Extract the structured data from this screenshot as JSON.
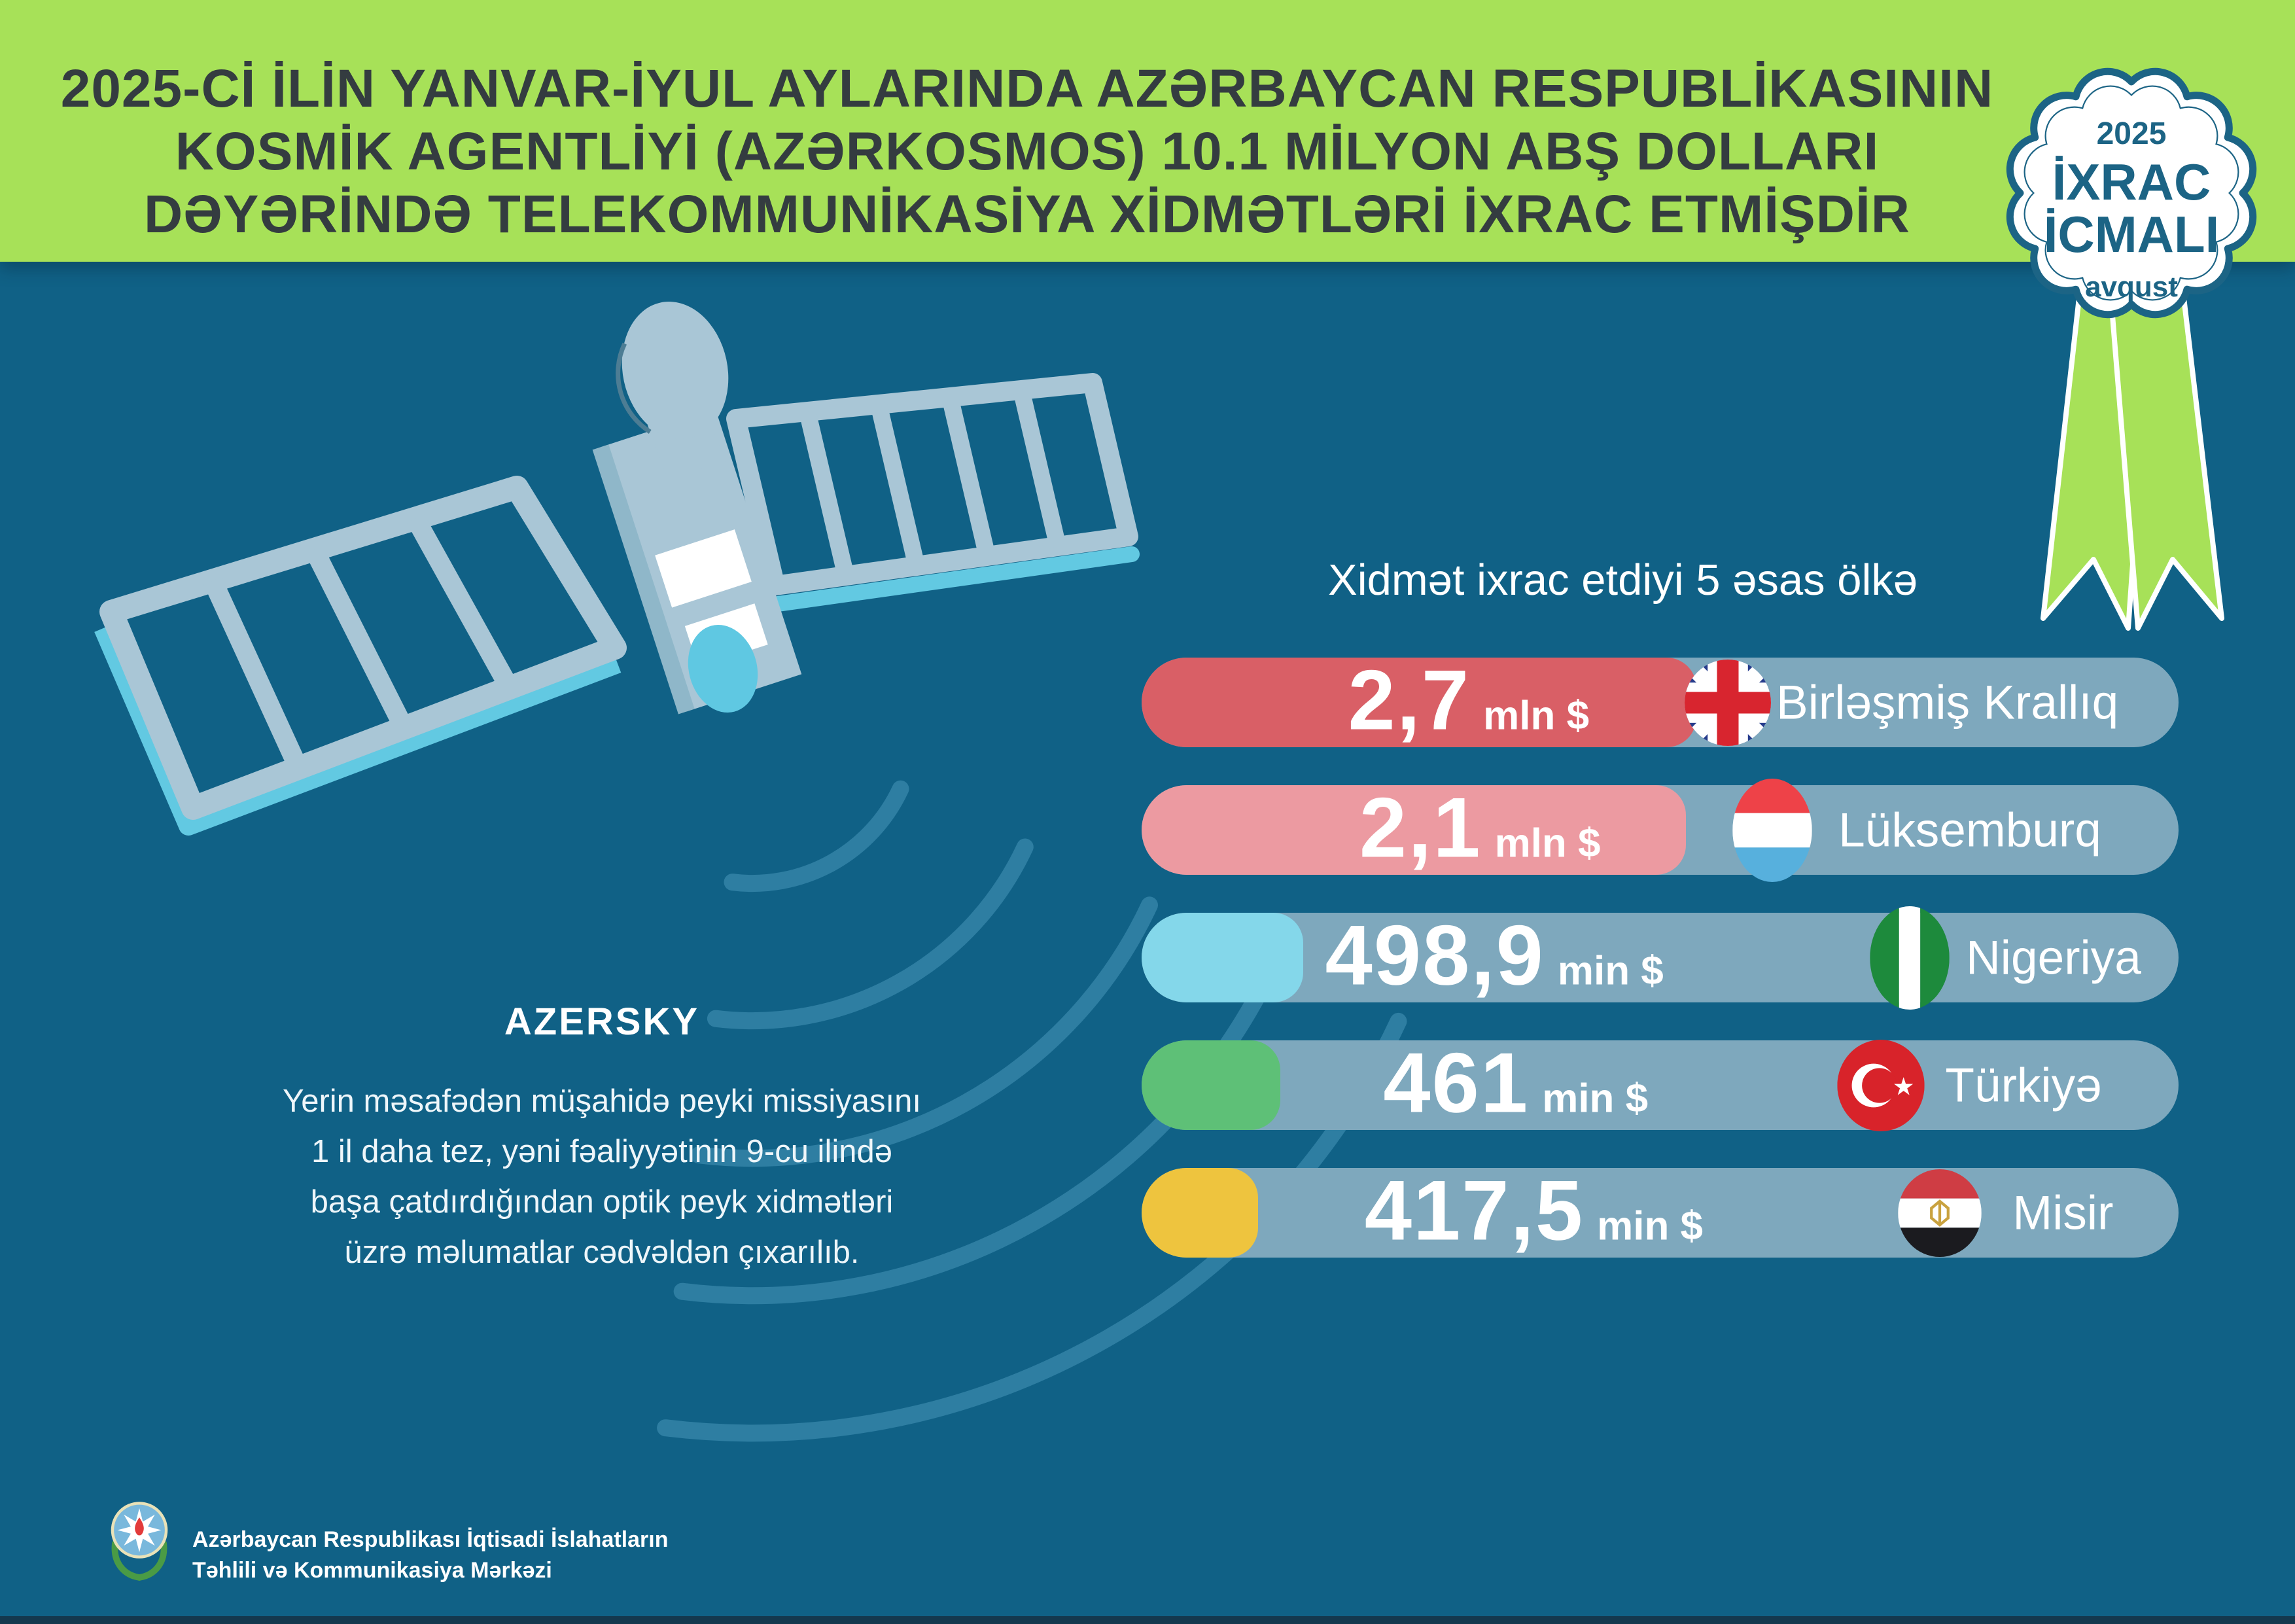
{
  "palette": {
    "background_teal": "#106186",
    "header_green": "#a7e158",
    "title_text": "#343c40",
    "badge_teal": "#1c6485",
    "track": "#7ea8bd",
    "satellite_body": "#a9c6d6",
    "satellite_edge": "#62c9e2",
    "signal_arc": "#2e7ea2"
  },
  "header": {
    "title_lines": [
      "2025-Cİ İLİN YANVAR-İYUL AYLARINDA AZƏRBAYCAN RESPUBLİKASININ",
      "KOSMİK AGENTLİYİ (AZƏRKOSMOS) 10.1 MİLYON ABŞ DOLLARI",
      "DƏYƏRİNDƏ TELEKOMMUNİKASİYA XİDMƏTLƏRİ İXRAC ETMİŞDİR"
    ],
    "badge": {
      "year": "2025",
      "word1": "İXRAC",
      "word2": "İCMALI",
      "month": "avqust"
    }
  },
  "azersky": {
    "title": "AZERSKY",
    "note_lines": [
      "Yerin məsafədən müşahidə peyki missiyasını",
      "1 il daha tez, yəni fəaliyyətinin 9-cu ilində",
      "başa çatdırdığından optik peyk xidmətləri",
      "üzrə məlumatlar cədvəldən çıxarılıb."
    ]
  },
  "chart": {
    "title": "Xidmət ixrac etdiyi 5 əsas ölkə",
    "rows": [
      {
        "value": "2,7",
        "unit": "mln $",
        "country": "Birləşmiş Krallıq",
        "flag": "uk",
        "color": "#d95f66",
        "bar_pct": 53.5
      },
      {
        "value": "2,1",
        "unit": "mln $",
        "country": "Lüksemburq",
        "flag": "lu",
        "color": "#ec9aa1",
        "bar_pct": 52.5
      },
      {
        "value": "498,9",
        "unit": "min $",
        "country": "Nigeriya",
        "flag": "ng",
        "color": "#84d7ea",
        "bar_pct": 15.6
      },
      {
        "value": "461",
        "unit": "min $",
        "country": "Türkiyə",
        "flag": "tr",
        "color": "#5ec077",
        "bar_pct": 13.4
      },
      {
        "value": "417,5",
        "unit": "min $",
        "country": "Misir",
        "flag": "eg",
        "color": "#eec43e",
        "bar_pct": 11.2
      }
    ]
  },
  "chart_data": {
    "type": "bar",
    "orientation": "horizontal",
    "title": "Xidmət ixrac etdiyi 5 əsas ölkə",
    "categories": [
      "Birləşmiş Krallıq",
      "Lüksemburq",
      "Nigeriya",
      "Türkiyə",
      "Misir"
    ],
    "values_usd_thousand": [
      2700,
      2100,
      498.9,
      461,
      417.5
    ],
    "value_labels": [
      "2,7 mln $",
      "2,1 mln $",
      "498,9 min $",
      "461 min $",
      "417,5 min $"
    ],
    "bar_colors": [
      "#d95f66",
      "#ec9aa1",
      "#84d7ea",
      "#5ec077",
      "#eec43e"
    ],
    "legend": "none",
    "grid": false
  },
  "footer": {
    "org_lines": [
      "Azərbaycan Respublikası İqtisadi İslahatların",
      "Təhlili və Kommunikasiya Mərkəzi"
    ]
  }
}
